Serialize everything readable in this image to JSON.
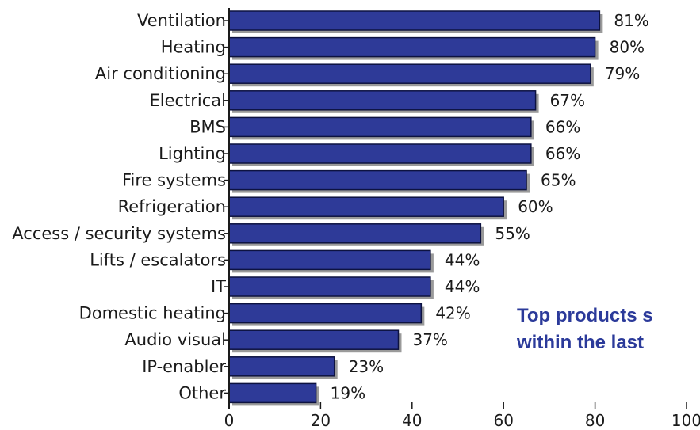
{
  "chart_data": {
    "type": "bar",
    "orientation": "horizontal",
    "title": "",
    "subtitle_lines": [
      "Top products s",
      "within the last"
    ],
    "xlabel": "",
    "ylabel": "",
    "xlim": [
      0,
      100
    ],
    "x_ticks": [
      0,
      20,
      40,
      60,
      80,
      100
    ],
    "categories": [
      "Ventilation",
      "Heating",
      "Air conditioning",
      "Electrical",
      "BMS",
      "Lighting",
      "Fire systems",
      "Refrigeration",
      "Access / security systems",
      "Lifts / escalators",
      "IT",
      "Domestic heating",
      "Audio visual",
      "IP-enabler",
      "Other"
    ],
    "values": [
      81,
      80,
      79,
      67,
      66,
      66,
      65,
      60,
      55,
      44,
      44,
      42,
      37,
      23,
      19
    ],
    "value_labels": [
      "81%",
      "80%",
      "79%",
      "67%",
      "66%",
      "66%",
      "65%",
      "60%",
      "55%",
      "44%",
      "44%",
      "42%",
      "37%",
      "23%",
      "19%"
    ],
    "bar_color": "#2e3a98",
    "bar_edge_color": "#0d1240",
    "shadow_color": "#9a9a9a",
    "grid": false,
    "legend": "none"
  }
}
